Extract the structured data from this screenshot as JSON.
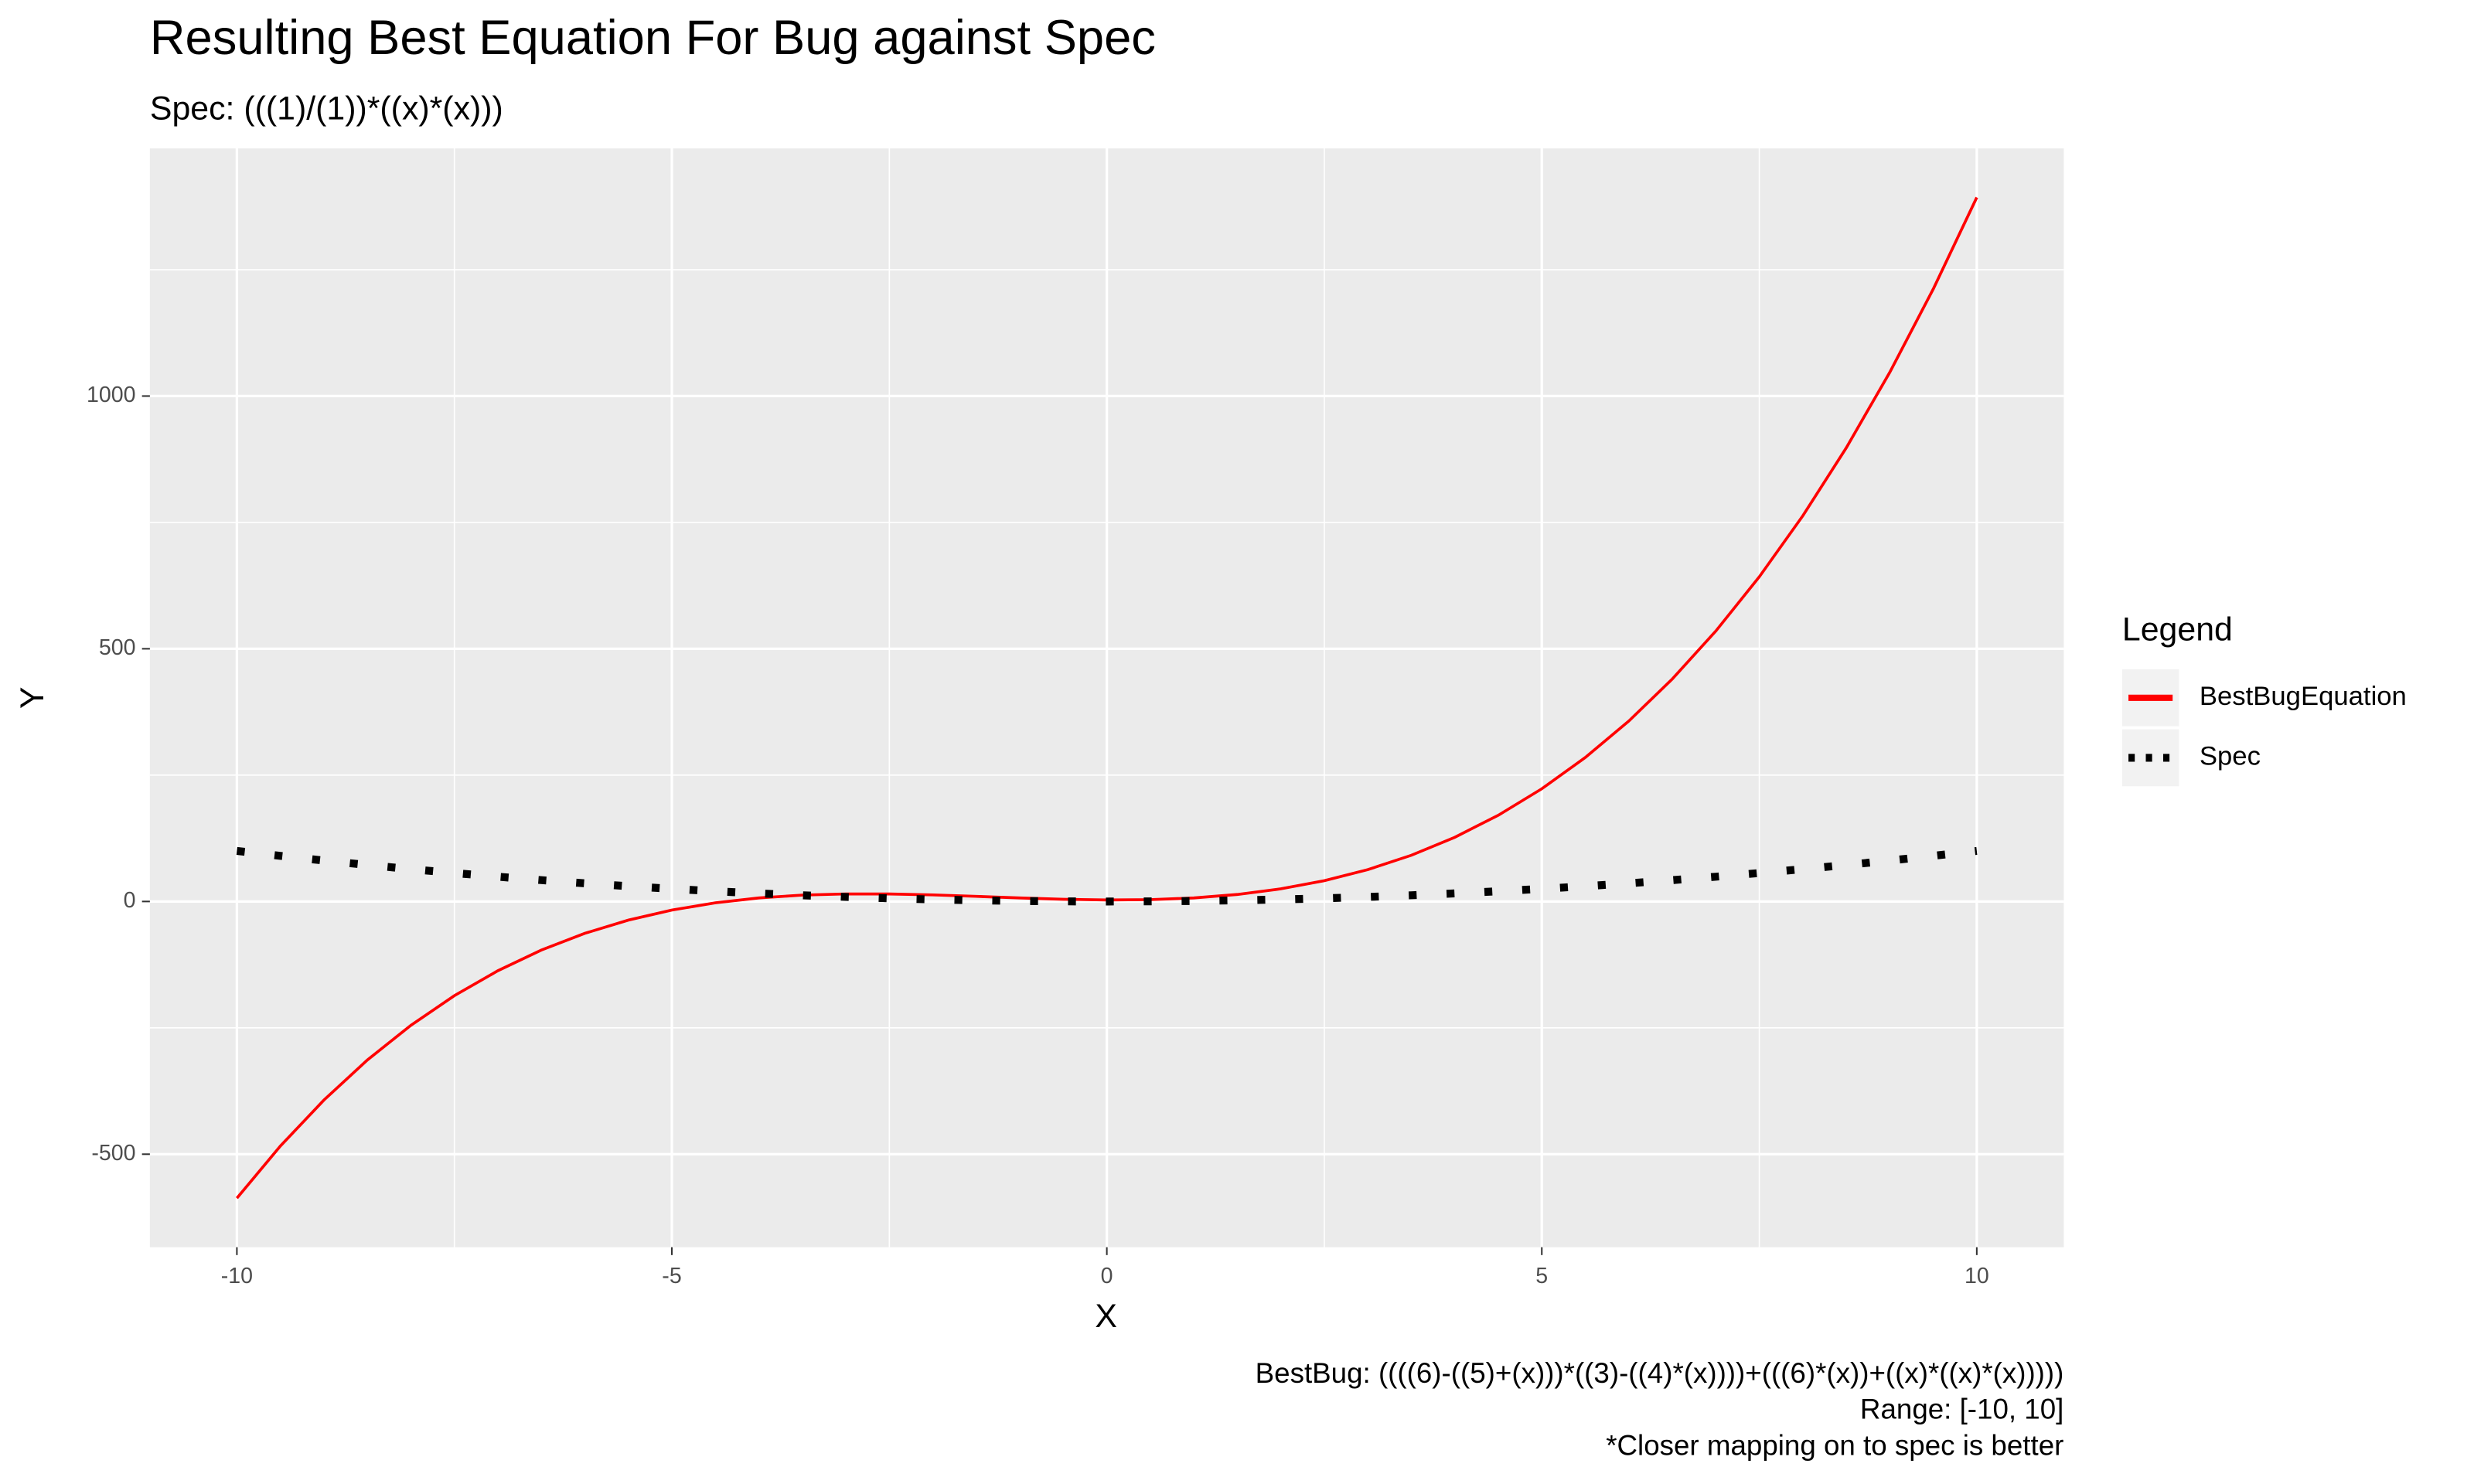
{
  "chart_data": {
    "type": "line",
    "title": "Resulting Best Equation For Bug against Spec",
    "subtitle": "Spec: (((1)/(1))*((x)*(x)))",
    "x_label": "X",
    "y_label": "Y",
    "legend_title": "Legend",
    "legend_position": "right",
    "captions": [
      "BestBug: ((((6)-((5)+(x)))*((3)-((4)*(x))))+(((6)*(x))+((x)*((x)*(x)))))",
      "Range: [-10, 10]",
      "*Closer mapping on to spec is better"
    ],
    "grid": true,
    "xlim": [
      -11,
      11
    ],
    "ylim": [
      -684,
      1490
    ],
    "xticks": [
      -10,
      -5,
      0,
      5,
      10
    ],
    "yticks": [
      -500,
      0,
      500,
      1000
    ],
    "x": [
      -10,
      -9.5,
      -9,
      -8.5,
      -8,
      -7.5,
      -7,
      -6.5,
      -6,
      -5.5,
      -5,
      -4.5,
      -4,
      -3.5,
      -3,
      -2.5,
      -2,
      -1.5,
      -1,
      -0.5,
      0,
      0.5,
      1,
      1.5,
      2,
      2.5,
      3,
      3.5,
      4,
      4.5,
      5,
      5.5,
      6,
      6.5,
      7,
      7.5,
      8,
      8.5,
      9,
      9.5,
      10
    ],
    "series": [
      {
        "name": "BestBugEquation",
        "color": "#ff0000",
        "dash": "solid",
        "values": [
          -587,
          -483.875,
          -393,
          -313.625,
          -245,
          -186.375,
          -137,
          -96.125,
          -63,
          -36.875,
          -17,
          -2.625,
          7,
          12.625,
          15,
          14.875,
          13,
          10.125,
          7,
          4.375,
          3,
          3.625,
          7,
          13.875,
          25,
          41.125,
          63,
          91.375,
          127,
          170.625,
          223,
          284.875,
          357,
          440.125,
          535,
          642.375,
          763,
          897.625,
          1047,
          1211.875,
          1393
        ]
      },
      {
        "name": "Spec",
        "color": "#000000",
        "dash": "dotted",
        "values": [
          100,
          90.25,
          81,
          72.25,
          64,
          56.25,
          49,
          42.25,
          36,
          30.25,
          25,
          20.25,
          16,
          12.25,
          9,
          6.25,
          4,
          2.25,
          1,
          0.25,
          0,
          0.25,
          1,
          2.25,
          4,
          6.25,
          9,
          12.25,
          16,
          20.25,
          25,
          30.25,
          36,
          42.25,
          49,
          56.25,
          64,
          72.25,
          81,
          90.25,
          100
        ]
      }
    ]
  }
}
